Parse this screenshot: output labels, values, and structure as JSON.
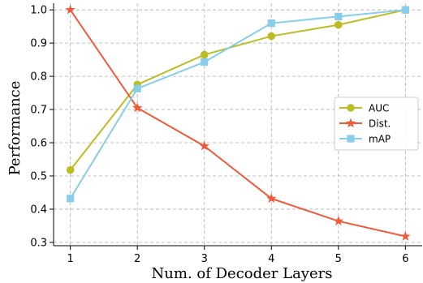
{
  "chart_data": {
    "type": "line",
    "xlabel": "Num. of Decoder Layers",
    "ylabel": "Performance",
    "x": [
      1,
      2,
      3,
      4,
      5,
      6
    ],
    "xlim": [
      0.75,
      6.25
    ],
    "ylim": [
      0.29,
      1.02
    ],
    "xticks": [
      "1",
      "2",
      "3",
      "4",
      "5",
      "6"
    ],
    "yticks": [
      "0.3",
      "0.4",
      "0.5",
      "0.6",
      "0.7",
      "0.8",
      "0.9",
      "1.0"
    ],
    "grid": true,
    "legend_position": "center-right",
    "series": [
      {
        "name": "AUC",
        "color": "#bcbd22",
        "marker": "circle",
        "values": [
          0.518,
          0.775,
          0.865,
          0.921,
          0.955,
          1.0
        ]
      },
      {
        "name": "Dist.",
        "color": "#f05a3a",
        "marker": "star",
        "values": [
          1.0,
          0.705,
          0.59,
          0.432,
          0.364,
          0.318
        ]
      },
      {
        "name": "mAP",
        "color": "#87ceeb",
        "marker": "square",
        "values": [
          0.432,
          0.763,
          0.843,
          0.96,
          0.98,
          1.0
        ]
      }
    ]
  }
}
